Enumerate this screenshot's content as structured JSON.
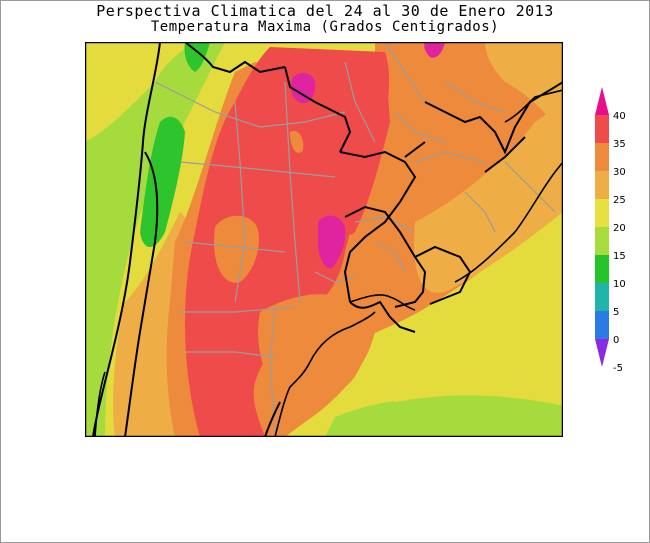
{
  "title": "Perspectiva Climatica del 24 al 30 de Enero 2013",
  "subtitle": "Temperatura Maxima (Grados Centigrados)",
  "legend": {
    "labels": [
      "40",
      "35",
      "30",
      "25",
      "20",
      "15",
      "10",
      "5",
      "0",
      "-5"
    ],
    "colors": [
      "#e80e8c",
      "#f04b4b",
      "#ee8a3c",
      "#eead45",
      "#e6e040",
      "#a8db3c",
      "#25c42a",
      "#1fb5aa",
      "#2b7be6",
      "#8a2be2"
    ]
  },
  "colors": {
    "pink": "#e024a0",
    "red": "#f04b4b",
    "orange": "#ee8a3c",
    "light_orange": "#eead45",
    "yellow": "#e4dc3c",
    "lime": "#a6db3e",
    "green": "#2ec42e",
    "border": "#000000",
    "province_lines": "#9c9c9c"
  }
}
